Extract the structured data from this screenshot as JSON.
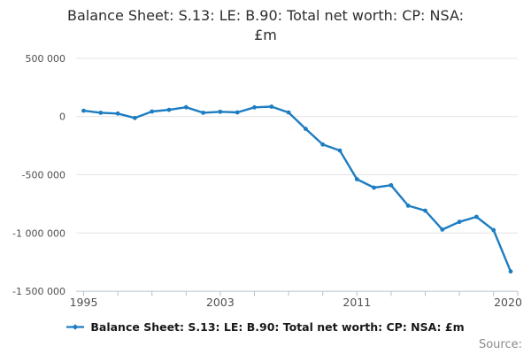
{
  "title": {
    "line1": "Balance Sheet: S.13: LE: B.90: Total net worth: CP: NSA:",
    "line2": "£m"
  },
  "legend": {
    "label": "Balance Sheet: S.13: LE: B.90: Total net worth: CP: NSA: £m"
  },
  "source": {
    "label": "Source:"
  },
  "colors": {
    "line": "#1d7dc2",
    "grid": "#e3e3e3",
    "axis": "#b6c2d0",
    "tick_label": "#4f4f4f",
    "title_text": "#2d2d2d",
    "source_text": "#8a8a8a",
    "background": "#ffffff"
  },
  "chart_data": {
    "type": "line",
    "title": "Balance Sheet: S.13: LE: B.90: Total net worth: CP: NSA: £m",
    "xlabel": "",
    "ylabel": "",
    "grid": true,
    "legend_position": "bottom",
    "x": [
      1995,
      1996,
      1997,
      1998,
      1999,
      2000,
      2001,
      2002,
      2003,
      2004,
      2005,
      2006,
      2007,
      2008,
      2009,
      2010,
      2011,
      2012,
      2013,
      2014,
      2015,
      2016,
      2017,
      2018,
      2019,
      2020
    ],
    "series": [
      {
        "name": "Balance Sheet: S.13: LE: B.90: Total net worth: CP: NSA: £m",
        "values": [
          50000,
          33000,
          26000,
          -12000,
          43000,
          58000,
          80000,
          33000,
          41000,
          36000,
          79000,
          85000,
          35000,
          -106000,
          -240000,
          -292000,
          -538000,
          -610000,
          -590000,
          -765000,
          -808000,
          -970000,
          -904000,
          -861000,
          -975000,
          -1330000
        ]
      }
    ],
    "ylim": [
      -1500000,
      500000
    ],
    "yticks": [
      500000,
      0,
      -500000,
      -1000000,
      -1500000
    ],
    "ytick_labels": [
      "500 000",
      "0",
      "-500 000",
      "-1 000 000",
      "-1 500 000"
    ],
    "xtick_years": [
      1995,
      2003,
      2011,
      2020
    ],
    "xtick_labels": [
      "1995",
      "2003",
      "2011",
      "2020"
    ]
  }
}
